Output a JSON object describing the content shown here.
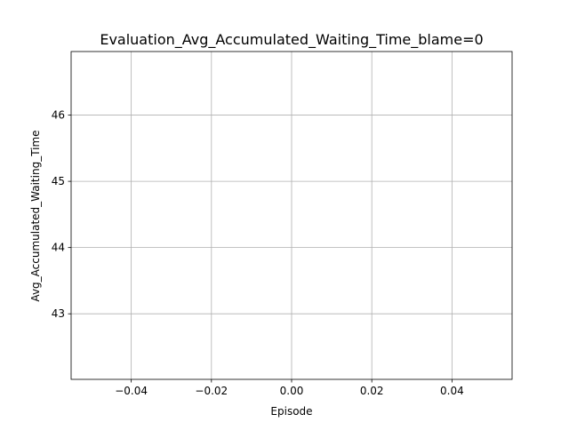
{
  "chart_data": {
    "type": "line",
    "title": "Evaluation_Avg_Accumulated_Waiting_Time_blame=0",
    "xlabel": "Episode",
    "ylabel": "Avg_Accumulated_Waiting_Time",
    "xlim": [
      -0.055,
      0.055
    ],
    "ylim": [
      42.01,
      46.96
    ],
    "x_ticks": [
      -0.04,
      -0.02,
      0.0,
      0.02,
      0.04
    ],
    "x_tick_labels": [
      "−0.04",
      "−0.02",
      "0.00",
      "0.02",
      "0.04"
    ],
    "y_ticks": [
      43,
      44,
      45,
      46
    ],
    "y_tick_labels": [
      "43",
      "44",
      "45",
      "46"
    ],
    "grid": true,
    "series": [
      {
        "x": [],
        "y": []
      }
    ]
  },
  "colors": {
    "grid": "#b0b0b0",
    "axes": "#000000",
    "background": "#ffffff"
  }
}
